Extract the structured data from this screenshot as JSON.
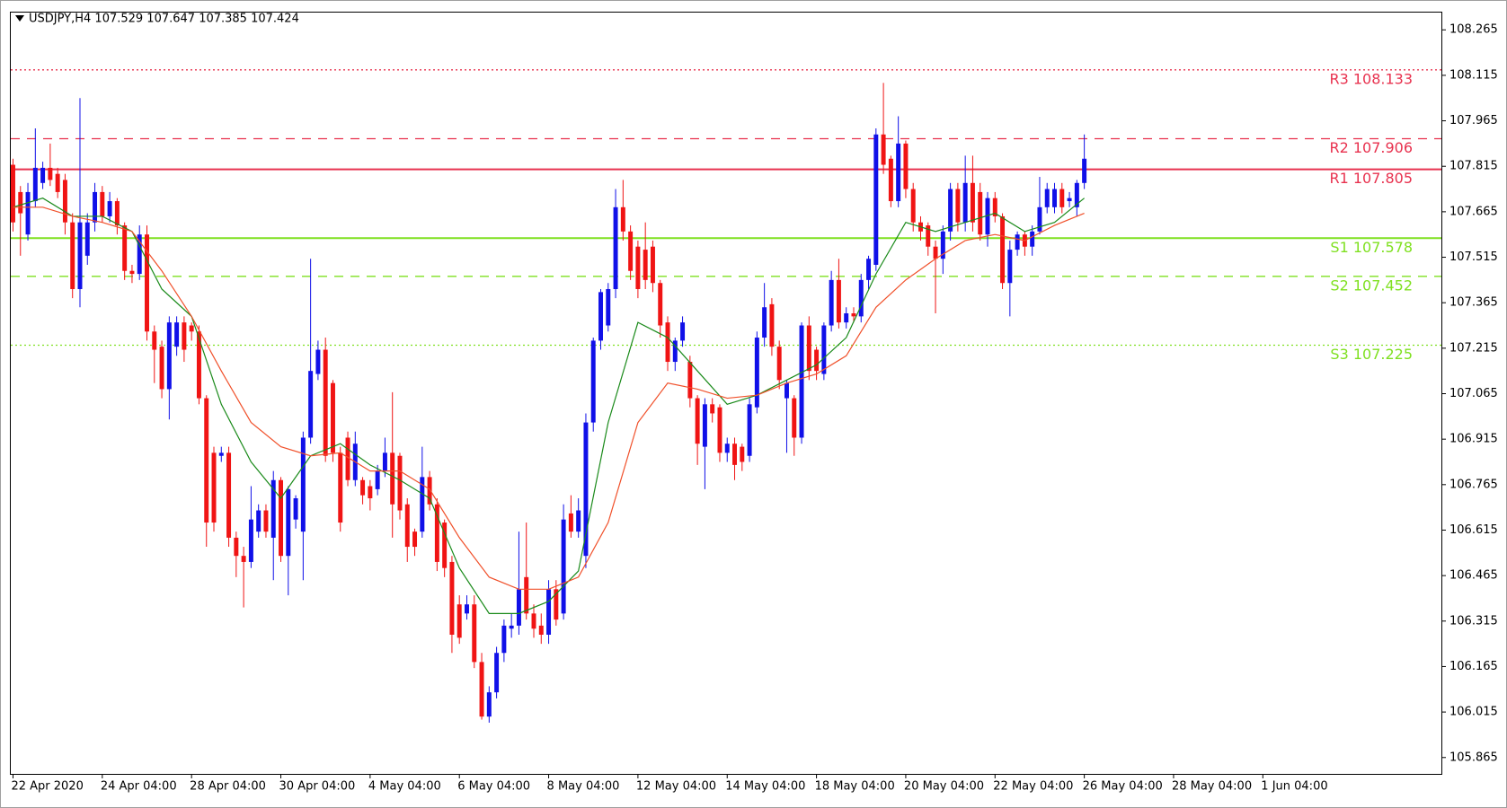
{
  "chart_data": {
    "type": "candlestick",
    "title": "USDJPY,H4  107.529 107.647 107.385 107.424",
    "up_color": "#1010e8",
    "down_color": "#f01414",
    "ylim": [
      105.811,
      108.322
    ],
    "yticks": [
      105.865,
      106.015,
      106.165,
      106.315,
      106.465,
      106.615,
      106.765,
      106.915,
      107.065,
      107.215,
      107.365,
      107.515,
      107.665,
      107.815,
      107.965,
      108.115,
      108.265
    ],
    "xlim": [
      -0.3,
      192
    ],
    "xticks": [
      {
        "value": 0,
        "label": "22 Apr 2020"
      },
      {
        "value": 12,
        "label": "24 Apr 04:00"
      },
      {
        "value": 24,
        "label": "28 Apr 04:00"
      },
      {
        "value": 36,
        "label": "30 Apr 04:00"
      },
      {
        "value": 48,
        "label": "4 May 04:00"
      },
      {
        "value": 60,
        "label": "6 May 04:00"
      },
      {
        "value": 72,
        "label": "8 May 04:00"
      },
      {
        "value": 84,
        "label": "12 May 04:00"
      },
      {
        "value": 96,
        "label": "14 May 04:00"
      },
      {
        "value": 108,
        "label": "18 May 04:00"
      },
      {
        "value": 120,
        "label": "20 May 04:00"
      },
      {
        "value": 132,
        "label": "22 May 04:00"
      },
      {
        "value": 144,
        "label": "26 May 04:00"
      },
      {
        "value": 156,
        "label": "28 May 04:00"
      },
      {
        "value": 168,
        "label": "1 Jun 04:00"
      }
    ],
    "levels": [
      {
        "label": "R3 108.133",
        "value": 108.133,
        "color": "#e8314e",
        "style": "dotted"
      },
      {
        "label": "R2 107.906",
        "value": 107.906,
        "color": "#e8314e",
        "style": "dashed"
      },
      {
        "label": "R1 107.805",
        "value": 107.805,
        "color": "#e8314e",
        "style": "solid"
      },
      {
        "label": "S1 107.578",
        "value": 107.578,
        "color": "#7fe020",
        "style": "solid"
      },
      {
        "label": "S2 107.452",
        "value": 107.452,
        "color": "#7fe020",
        "style": "dashed"
      },
      {
        "label": "S3 107.225",
        "value": 107.225,
        "color": "#7fe020",
        "style": "dotted"
      }
    ],
    "ohlc": [
      [
        107.82,
        107.84,
        107.6,
        107.63
      ],
      [
        107.73,
        107.75,
        107.52,
        107.66
      ],
      [
        107.59,
        107.76,
        107.57,
        107.73
      ],
      [
        107.7,
        107.94,
        107.68,
        107.81
      ],
      [
        107.76,
        107.83,
        107.74,
        107.81
      ],
      [
        107.81,
        107.89,
        107.75,
        107.77
      ],
      [
        107.79,
        107.81,
        107.71,
        107.73
      ],
      [
        107.77,
        107.79,
        107.59,
        107.63
      ],
      [
        107.63,
        107.66,
        107.38,
        107.41
      ],
      [
        107.41,
        108.04,
        107.35,
        107.63
      ],
      [
        107.52,
        107.66,
        107.49,
        107.63
      ],
      [
        107.63,
        107.76,
        107.6,
        107.73
      ],
      [
        107.73,
        107.75,
        107.63,
        107.65
      ],
      [
        107.65,
        107.73,
        107.63,
        107.7
      ],
      [
        107.7,
        107.71,
        107.59,
        107.62
      ],
      [
        107.62,
        107.63,
        107.44,
        107.47
      ],
      [
        107.47,
        107.49,
        107.43,
        107.46
      ],
      [
        107.46,
        107.62,
        107.44,
        107.59
      ],
      [
        107.59,
        107.62,
        107.24,
        107.27
      ],
      [
        107.27,
        107.29,
        107.1,
        107.21
      ],
      [
        107.22,
        107.24,
        107.05,
        107.08
      ],
      [
        107.08,
        107.32,
        106.98,
        107.3
      ],
      [
        107.22,
        107.32,
        107.19,
        107.3
      ],
      [
        107.3,
        107.32,
        107.17,
        107.21
      ],
      [
        107.29,
        107.3,
        107.24,
        107.27
      ],
      [
        107.27,
        107.29,
        107.03,
        107.05
      ],
      [
        107.05,
        107.06,
        106.56,
        106.64
      ],
      [
        106.87,
        106.89,
        106.61,
        106.64
      ],
      [
        106.86,
        106.89,
        106.84,
        106.87
      ],
      [
        106.87,
        106.89,
        106.56,
        106.59
      ],
      [
        106.59,
        106.61,
        106.46,
        106.53
      ],
      [
        106.53,
        106.56,
        106.36,
        106.51
      ],
      [
        106.51,
        106.76,
        106.49,
        106.65
      ],
      [
        106.61,
        106.7,
        106.59,
        106.68
      ],
      [
        106.68,
        106.7,
        106.59,
        106.61
      ],
      [
        106.59,
        106.81,
        106.45,
        106.78
      ],
      [
        106.78,
        106.79,
        106.51,
        106.53
      ],
      [
        106.53,
        106.76,
        106.4,
        106.75
      ],
      [
        106.65,
        106.73,
        106.62,
        106.72
      ],
      [
        106.61,
        106.94,
        106.45,
        106.92
      ],
      [
        106.92,
        107.51,
        106.9,
        107.14
      ],
      [
        107.13,
        107.24,
        107.11,
        107.21
      ],
      [
        107.21,
        107.25,
        106.84,
        106.86
      ],
      [
        107.1,
        107.11,
        106.84,
        106.87
      ],
      [
        106.87,
        106.89,
        106.61,
        106.64
      ],
      [
        106.92,
        106.94,
        106.76,
        106.78
      ],
      [
        106.78,
        106.94,
        106.76,
        106.9
      ],
      [
        106.78,
        106.79,
        106.7,
        106.73
      ],
      [
        106.76,
        106.78,
        106.68,
        106.72
      ],
      [
        106.75,
        106.83,
        106.73,
        106.81
      ],
      [
        106.81,
        106.92,
        106.79,
        106.87
      ],
      [
        106.87,
        107.07,
        106.59,
        106.7
      ],
      [
        106.86,
        106.87,
        106.65,
        106.68
      ],
      [
        106.7,
        106.72,
        106.51,
        106.56
      ],
      [
        106.61,
        106.62,
        106.53,
        106.56
      ],
      [
        106.61,
        106.89,
        106.59,
        106.79
      ],
      [
        106.79,
        106.81,
        106.68,
        106.7
      ],
      [
        106.7,
        106.72,
        106.48,
        106.51
      ],
      [
        106.64,
        106.65,
        106.46,
        106.49
      ],
      [
        106.51,
        106.53,
        106.21,
        106.27
      ],
      [
        106.37,
        106.4,
        106.24,
        106.26
      ],
      [
        106.34,
        106.4,
        106.32,
        106.37
      ],
      [
        106.37,
        106.4,
        106.16,
        106.18
      ],
      [
        106.18,
        106.21,
        105.99,
        106.0
      ],
      [
        106.0,
        106.1,
        105.98,
        106.08
      ],
      [
        106.08,
        106.23,
        106.06,
        106.21
      ],
      [
        106.21,
        106.32,
        106.18,
        106.3
      ],
      [
        106.29,
        106.34,
        106.26,
        106.3
      ],
      [
        106.3,
        106.61,
        106.27,
        106.42
      ],
      [
        106.46,
        106.64,
        106.32,
        106.34
      ],
      [
        106.34,
        106.37,
        106.26,
        106.29
      ],
      [
        106.3,
        106.34,
        106.24,
        106.27
      ],
      [
        106.27,
        106.45,
        106.24,
        106.42
      ],
      [
        106.42,
        106.45,
        106.3,
        106.32
      ],
      [
        106.34,
        106.7,
        106.32,
        106.65
      ],
      [
        106.67,
        106.73,
        106.59,
        106.61
      ],
      [
        106.61,
        106.72,
        106.59,
        106.68
      ],
      [
        106.53,
        107.0,
        106.49,
        106.97
      ],
      [
        106.97,
        107.25,
        106.94,
        107.24
      ],
      [
        107.24,
        107.41,
        107.21,
        107.4
      ],
      [
        107.29,
        107.43,
        107.27,
        107.41
      ],
      [
        107.41,
        107.74,
        107.38,
        107.68
      ],
      [
        107.68,
        107.77,
        107.57,
        107.6
      ],
      [
        107.6,
        107.62,
        107.44,
        107.47
      ],
      [
        107.55,
        107.57,
        107.38,
        107.41
      ],
      [
        107.54,
        107.63,
        107.41,
        107.44
      ],
      [
        107.55,
        107.57,
        107.4,
        107.43
      ],
      [
        107.43,
        107.44,
        107.25,
        107.29
      ],
      [
        107.3,
        107.32,
        107.14,
        107.17
      ],
      [
        107.17,
        107.25,
        107.14,
        107.24
      ],
      [
        107.24,
        107.32,
        107.22,
        107.3
      ],
      [
        107.17,
        107.19,
        107.02,
        107.05
      ],
      [
        107.05,
        107.06,
        106.83,
        106.9
      ],
      [
        106.89,
        107.05,
        106.75,
        107.03
      ],
      [
        107.03,
        107.05,
        106.97,
        107.0
      ],
      [
        107.02,
        107.03,
        106.84,
        106.87
      ],
      [
        106.87,
        106.92,
        106.84,
        106.9
      ],
      [
        106.9,
        106.92,
        106.78,
        106.83
      ],
      [
        106.89,
        106.9,
        106.81,
        106.84
      ],
      [
        106.86,
        107.05,
        106.84,
        107.03
      ],
      [
        107.02,
        107.27,
        107.0,
        107.25
      ],
      [
        107.25,
        107.43,
        107.22,
        107.35
      ],
      [
        107.36,
        107.38,
        107.19,
        107.22
      ],
      [
        107.22,
        107.24,
        107.08,
        107.11
      ],
      [
        107.05,
        107.11,
        106.87,
        107.1
      ],
      [
        107.05,
        107.06,
        106.86,
        106.92
      ],
      [
        106.92,
        107.3,
        106.9,
        107.29
      ],
      [
        107.29,
        107.32,
        107.11,
        107.14
      ],
      [
        107.21,
        107.22,
        107.11,
        107.14
      ],
      [
        107.13,
        107.3,
        107.11,
        107.29
      ],
      [
        107.29,
        107.47,
        107.27,
        107.44
      ],
      [
        107.44,
        107.51,
        107.28,
        107.3
      ],
      [
        107.3,
        107.35,
        107.28,
        107.33
      ],
      [
        107.33,
        107.35,
        107.3,
        107.32
      ],
      [
        107.32,
        107.46,
        107.3,
        107.44
      ],
      [
        107.44,
        107.52,
        107.41,
        107.51
      ],
      [
        107.49,
        107.94,
        107.47,
        107.92
      ],
      [
        107.92,
        108.09,
        107.79,
        107.82
      ],
      [
        107.84,
        107.85,
        107.68,
        107.7
      ],
      [
        107.7,
        107.98,
        107.68,
        107.89
      ],
      [
        107.89,
        107.9,
        107.71,
        107.74
      ],
      [
        107.74,
        107.76,
        107.6,
        107.63
      ],
      [
        107.63,
        107.65,
        107.57,
        107.6
      ],
      [
        107.62,
        107.63,
        107.52,
        107.55
      ],
      [
        107.55,
        107.57,
        107.33,
        107.51
      ],
      [
        107.51,
        107.62,
        107.46,
        107.6
      ],
      [
        107.6,
        107.76,
        107.57,
        107.74
      ],
      [
        107.74,
        107.76,
        107.6,
        107.63
      ],
      [
        107.63,
        107.85,
        107.6,
        107.76
      ],
      [
        107.76,
        107.85,
        107.6,
        107.63
      ],
      [
        107.73,
        107.76,
        107.57,
        107.59
      ],
      [
        107.59,
        107.73,
        107.55,
        107.71
      ],
      [
        107.71,
        107.73,
        107.63,
        107.65
      ],
      [
        107.65,
        107.66,
        107.41,
        107.43
      ],
      [
        107.43,
        107.57,
        107.32,
        107.54
      ],
      [
        107.54,
        107.6,
        107.52,
        107.59
      ],
      [
        107.59,
        107.6,
        107.52,
        107.55
      ],
      [
        107.55,
        107.62,
        107.52,
        107.6
      ],
      [
        107.6,
        107.78,
        107.59,
        107.68
      ],
      [
        107.68,
        107.76,
        107.66,
        107.74
      ],
      [
        107.68,
        107.76,
        107.66,
        107.74
      ],
      [
        107.74,
        107.76,
        107.66,
        107.68
      ],
      [
        107.7,
        107.73,
        107.68,
        107.71
      ],
      [
        107.68,
        107.77,
        107.65,
        107.76
      ],
      [
        107.76,
        107.92,
        107.74,
        107.84
      ]
    ],
    "ma": [
      {
        "color": "#1a8a1a",
        "x": [
          0,
          4,
          8,
          12,
          16,
          20,
          24,
          28,
          32,
          36,
          40,
          44,
          48,
          52,
          56,
          60,
          64,
          68,
          72,
          76,
          80,
          84,
          88,
          92,
          96,
          100,
          104,
          108,
          112,
          116,
          120,
          124,
          128,
          132,
          136,
          140,
          144
        ],
        "values": [
          107.68,
          107.71,
          107.65,
          107.65,
          107.6,
          107.41,
          107.32,
          107.03,
          106.84,
          106.72,
          106.86,
          106.9,
          106.83,
          106.78,
          106.72,
          106.49,
          106.34,
          106.34,
          106.38,
          106.48,
          106.97,
          107.3,
          107.25,
          107.14,
          107.03,
          107.06,
          107.11,
          107.16,
          107.25,
          107.46,
          107.63,
          107.6,
          107.63,
          107.66,
          107.6,
          107.63,
          107.71
        ]
      },
      {
        "color": "#f0502a",
        "x": [
          0,
          4,
          8,
          12,
          16,
          20,
          24,
          28,
          32,
          36,
          40,
          44,
          48,
          52,
          56,
          60,
          64,
          68,
          72,
          76,
          80,
          84,
          88,
          92,
          96,
          100,
          104,
          108,
          112,
          116,
          120,
          124,
          128,
          132,
          136,
          140,
          144
        ],
        "values": [
          107.68,
          107.68,
          107.65,
          107.63,
          107.6,
          107.47,
          107.32,
          107.14,
          106.97,
          106.89,
          106.86,
          106.87,
          106.81,
          106.81,
          106.75,
          106.59,
          106.46,
          106.42,
          106.42,
          106.46,
          106.64,
          106.97,
          107.1,
          107.08,
          107.05,
          107.06,
          107.1,
          107.13,
          107.19,
          107.35,
          107.44,
          107.51,
          107.57,
          107.59,
          107.57,
          107.62,
          107.66
        ]
      }
    ]
  }
}
